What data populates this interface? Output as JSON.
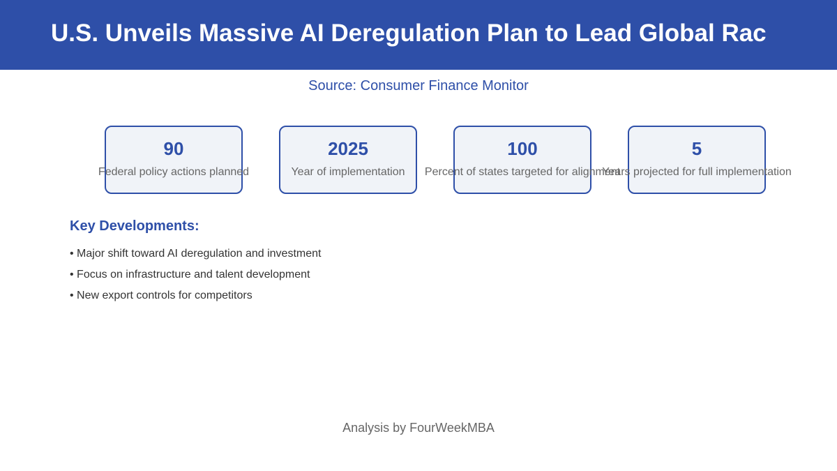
{
  "header": {
    "title": "U.S. Unveils Massive AI Deregulation Plan to Lead Global Rac"
  },
  "source": "Source: Consumer Finance Monitor",
  "stats": [
    {
      "value": "90",
      "label": "Federal policy actions planned"
    },
    {
      "value": "2025",
      "label": "Year of implementation"
    },
    {
      "value": "100",
      "label": "Percent of states targeted for alignment"
    },
    {
      "value": "5",
      "label": "Years projected for full implementation"
    }
  ],
  "developments": {
    "title": "Key Developments:",
    "items": [
      "• Major shift toward AI deregulation and investment",
      "• Focus on infrastructure and talent development",
      "• New export controls for competitors"
    ]
  },
  "footer": "Analysis by FourWeekMBA",
  "colors": {
    "accent": "#2e4fa8",
    "card_background": "#f0f3f8",
    "muted_text": "#666666"
  }
}
